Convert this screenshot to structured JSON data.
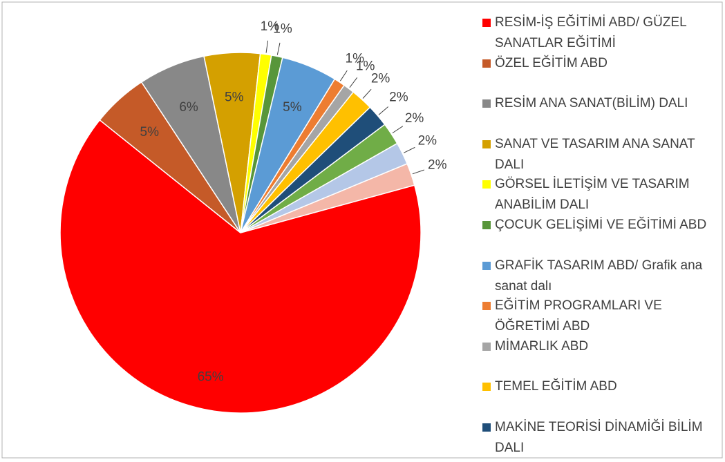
{
  "chart_data": {
    "type": "pie",
    "categories": [
      "RESİM-İŞ EĞİTİMİ ABD/ GÜZEL SANATLAR EĞİTİMİ",
      "ÖZEL EĞİTİM ABD",
      "RESİM ANA SANAT(BİLİM) DALI",
      "SANAT VE TASARIM ANA SANAT DALI",
      "GÖRSEL İLETİŞİM VE TASARIM ANABİLİM DALI",
      "ÇOCUK GELİŞİMİ VE EĞİTİMİ ABD",
      "GRAFİK TASARIM ABD/ Grafik ana sanat dalı",
      "EĞİTİM PROGRAMLARI VE ÖĞRETİMİ ABD",
      "MİMARLIK ABD",
      "TEMEL EĞİTİM ABD",
      "MAKİNE TEORİSİ DİNAMİĞİ BİLİM DALI",
      null,
      null,
      null
    ],
    "values": [
      65,
      5,
      6,
      5,
      1,
      1,
      5,
      1,
      1,
      2,
      2,
      2,
      2,
      2
    ],
    "value_labels": [
      "65%",
      "5%",
      "6%",
      "5%",
      "1%",
      "1%",
      "5%",
      "1%",
      "1%",
      "2%",
      "2%",
      "2%",
      "2%",
      "2%"
    ],
    "colors": [
      "#ff0000",
      "#c55a28",
      "#888888",
      "#d4a000",
      "#ffff00",
      "#58963a",
      "#5b9bd5",
      "#ed7d31",
      "#a5a5a5",
      "#ffc000",
      "#1f4e79",
      "#70ad47",
      "#b4c7e7",
      "#f4b7a8"
    ],
    "legend": "right"
  }
}
